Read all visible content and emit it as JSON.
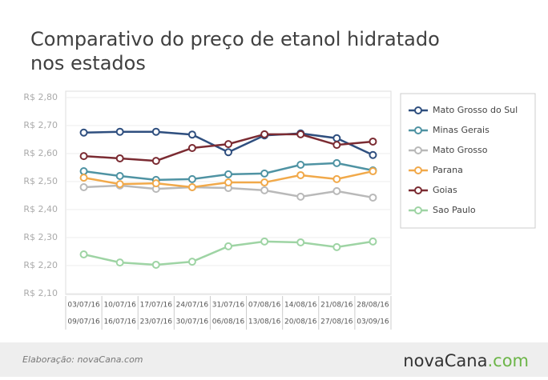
{
  "header": {
    "title_lines": [
      "Comparativo do preço de etanol hidratado",
      "nos estados"
    ]
  },
  "chart_data": {
    "type": "line",
    "categories": [
      [
        "03/07/16",
        "09/07/16"
      ],
      [
        "10/07/16",
        "16/07/16"
      ],
      [
        "17/07/16",
        "23/07/16"
      ],
      [
        "24/07/16",
        "30/07/16"
      ],
      [
        "31/07/16",
        "06/08/16"
      ],
      [
        "07/08/16",
        "13/08/16"
      ],
      [
        "14/08/16",
        "20/08/16"
      ],
      [
        "21/08/16",
        "27/08/16"
      ],
      [
        "28/08/16",
        "03/09/16"
      ]
    ],
    "series": [
      {
        "name": "Mato Grosso do Sul",
        "color": "#2f4f7f",
        "values": [
          2.675,
          2.678,
          2.678,
          2.668,
          2.605,
          2.665,
          2.672,
          2.655,
          2.595
        ]
      },
      {
        "name": "Minas Gerais",
        "color": "#4f93a3",
        "values": [
          2.537,
          2.52,
          2.506,
          2.509,
          2.526,
          2.529,
          2.56,
          2.566,
          2.54
        ]
      },
      {
        "name": "Mato Grosso",
        "color": "#b9b9b9",
        "values": [
          2.48,
          2.486,
          2.474,
          2.48,
          2.477,
          2.469,
          2.446,
          2.466,
          2.443
        ]
      },
      {
        "name": "Parana",
        "color": "#f1a94a",
        "values": [
          2.514,
          2.491,
          2.494,
          2.48,
          2.497,
          2.497,
          2.523,
          2.509,
          2.537
        ]
      },
      {
        "name": "Goias",
        "color": "#7b2b32",
        "values": [
          2.591,
          2.583,
          2.574,
          2.62,
          2.634,
          2.669,
          2.669,
          2.631,
          2.643
        ]
      },
      {
        "name": "Sao Paulo",
        "color": "#9ed4a4",
        "values": [
          2.24,
          2.211,
          2.203,
          2.214,
          2.269,
          2.286,
          2.283,
          2.266,
          2.286
        ]
      }
    ],
    "ylim": [
      2.1,
      2.8
    ],
    "yticks": [
      {
        "value": 2.1,
        "label": "R$ 2,10"
      },
      {
        "value": 2.2,
        "label": "R$ 2,20"
      },
      {
        "value": 2.3,
        "label": "R$ 2,30"
      },
      {
        "value": 2.4,
        "label": "R$ 2,40"
      },
      {
        "value": 2.5,
        "label": "R$ 2,50"
      },
      {
        "value": 2.6,
        "label": "R$ 2,60"
      },
      {
        "value": 2.7,
        "label": "R$ 2,70"
      },
      {
        "value": 2.8,
        "label": "R$ 2,80"
      }
    ],
    "grid": true,
    "legend": "right"
  },
  "footer": {
    "credit": "Elaboração: novaCana.com",
    "logo": [
      "novaCana",
      ".com"
    ]
  }
}
